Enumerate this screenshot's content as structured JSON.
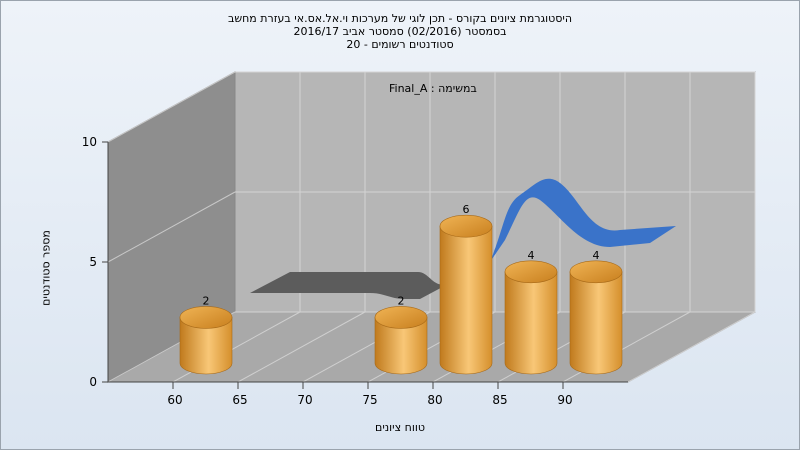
{
  "chart_data": {
    "type": "bar",
    "title_lines": [
      "היסטוגרמת ציונים בקורס - תכן לוגי של מערכות וי.אל.אס.אי בעזרת מחשב",
      "בסמסטר  (02/2016)  סמסטר אביב 2016/17",
      "סטודנטים רשומים - 20"
    ],
    "subtitle": "במשימה : Final_A",
    "xlabel": "טווח ציונים",
    "ylabel": "מספר סטודנטים",
    "x_ticks": [
      "60",
      "65",
      "70",
      "75",
      "80",
      "85",
      "90"
    ],
    "y_ticks": [
      "0",
      "5",
      "10"
    ],
    "ylim": [
      0,
      10
    ],
    "categories": [
      "60",
      "65",
      "70",
      "75",
      "80",
      "85",
      "90"
    ],
    "values": [
      2,
      0,
      0,
      2,
      6,
      4,
      4
    ],
    "grid": true,
    "colors": {
      "bar": "#e8a640",
      "line": "#3a73c9",
      "line_shadow": "#5a5a5a",
      "wall_left": "#8c8c8c",
      "wall_back": "#b4b4b4",
      "floor": "#a7a7a7"
    }
  }
}
